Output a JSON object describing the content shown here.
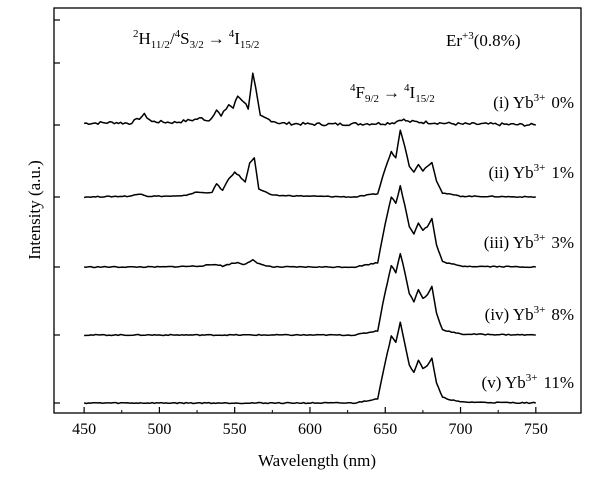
{
  "chart_data": {
    "type": "line",
    "title": "",
    "xlabel": "Wavelength (nm)",
    "ylabel": "Intensity (a.u.)",
    "xlim": [
      430,
      780
    ],
    "x_ticks": [
      450,
      500,
      550,
      600,
      650,
      700,
      750
    ],
    "y_ticks": "unlabeled",
    "legend": "none",
    "annotations": {
      "green_transition": {
        "a": "2",
        "b": "H",
        "c": "11/2",
        "d": "/",
        "e": "4",
        "f": "S",
        "g": "3/2",
        "h": "→",
        "i": "4",
        "j": "I",
        "k": "15/2"
      },
      "red_transition": {
        "a": "4",
        "b": "F",
        "c": "9/2",
        "d": "→",
        "e": "4",
        "f": "I",
        "g": "15/2"
      },
      "dopant": {
        "a": "Er",
        "b": "+3",
        "c": "(0.8%)"
      }
    },
    "series": [
      {
        "label": {
          "roman": "(i) Yb",
          "sup": "3+",
          "pct": "0%"
        },
        "points": [
          [
            450,
            0.02
          ],
          [
            470,
            0.03
          ],
          [
            480,
            0.02
          ],
          [
            485,
            0.06
          ],
          [
            490,
            0.12
          ],
          [
            495,
            0.04
          ],
          [
            510,
            0.03
          ],
          [
            522,
            0.06
          ],
          [
            528,
            0.08
          ],
          [
            533,
            0.05
          ],
          [
            538,
            0.18
          ],
          [
            541,
            0.1
          ],
          [
            546,
            0.24
          ],
          [
            549,
            0.2
          ],
          [
            552,
            0.34
          ],
          [
            556,
            0.28
          ],
          [
            559,
            0.2
          ],
          [
            562,
            0.6
          ],
          [
            564,
            0.42
          ],
          [
            567,
            0.1
          ],
          [
            580,
            0.02
          ],
          [
            600,
            0.01
          ],
          [
            620,
            0.01
          ],
          [
            650,
            0.02
          ],
          [
            656,
            0.03
          ],
          [
            661,
            0.07
          ],
          [
            665,
            0.04
          ],
          [
            680,
            0.03
          ],
          [
            700,
            0.01
          ],
          [
            720,
            0.01
          ],
          [
            750,
            0.0
          ]
        ]
      },
      {
        "label": {
          "roman": "(ii) Yb",
          "sup": "3+",
          "pct": "1%"
        },
        "points": [
          [
            450,
            0.0
          ],
          [
            480,
            0.01
          ],
          [
            488,
            0.04
          ],
          [
            492,
            0.01
          ],
          [
            515,
            0.01
          ],
          [
            525,
            0.06
          ],
          [
            530,
            0.05
          ],
          [
            535,
            0.06
          ],
          [
            538,
            0.16
          ],
          [
            542,
            0.08
          ],
          [
            546,
            0.22
          ],
          [
            550,
            0.3
          ],
          [
            553,
            0.26
          ],
          [
            557,
            0.18
          ],
          [
            560,
            0.42
          ],
          [
            563,
            0.48
          ],
          [
            566,
            0.1
          ],
          [
            575,
            0.02
          ],
          [
            600,
            0.01
          ],
          [
            630,
            0.0
          ],
          [
            645,
            0.04
          ],
          [
            650,
            0.35
          ],
          [
            654,
            0.55
          ],
          [
            657,
            0.48
          ],
          [
            660,
            0.82
          ],
          [
            663,
            0.62
          ],
          [
            666,
            0.38
          ],
          [
            669,
            0.3
          ],
          [
            672,
            0.4
          ],
          [
            675,
            0.32
          ],
          [
            678,
            0.38
          ],
          [
            681,
            0.42
          ],
          [
            684,
            0.2
          ],
          [
            688,
            0.05
          ],
          [
            700,
            0.01
          ],
          [
            750,
            0.0
          ]
        ]
      },
      {
        "label": {
          "roman": "(iii) Yb",
          "sup": "3+",
          "pct": "3%"
        },
        "points": [
          [
            450,
            0.0
          ],
          [
            500,
            0.0
          ],
          [
            525,
            0.01
          ],
          [
            538,
            0.03
          ],
          [
            542,
            0.01
          ],
          [
            548,
            0.04
          ],
          [
            552,
            0.05
          ],
          [
            556,
            0.03
          ],
          [
            562,
            0.08
          ],
          [
            565,
            0.04
          ],
          [
            575,
            0.0
          ],
          [
            630,
            0.0
          ],
          [
            645,
            0.05
          ],
          [
            650,
            0.5
          ],
          [
            654,
            0.8
          ],
          [
            657,
            0.72
          ],
          [
            660,
            0.92
          ],
          [
            663,
            0.7
          ],
          [
            666,
            0.46
          ],
          [
            669,
            0.38
          ],
          [
            672,
            0.5
          ],
          [
            675,
            0.42
          ],
          [
            678,
            0.46
          ],
          [
            681,
            0.55
          ],
          [
            684,
            0.25
          ],
          [
            688,
            0.06
          ],
          [
            700,
            0.01
          ],
          [
            750,
            0.0
          ]
        ]
      },
      {
        "label": {
          "roman": "(iv) Yb",
          "sup": "3+",
          "pct": "8%"
        },
        "points": [
          [
            450,
            0.0
          ],
          [
            560,
            0.0
          ],
          [
            630,
            0.0
          ],
          [
            645,
            0.05
          ],
          [
            650,
            0.5
          ],
          [
            654,
            0.8
          ],
          [
            657,
            0.72
          ],
          [
            660,
            0.94
          ],
          [
            663,
            0.72
          ],
          [
            666,
            0.48
          ],
          [
            669,
            0.38
          ],
          [
            672,
            0.52
          ],
          [
            675,
            0.42
          ],
          [
            678,
            0.46
          ],
          [
            681,
            0.56
          ],
          [
            684,
            0.25
          ],
          [
            688,
            0.06
          ],
          [
            700,
            0.01
          ],
          [
            750,
            0.0
          ]
        ]
      },
      {
        "label": {
          "roman": "(v) Yb",
          "sup": "3+",
          "pct": "11%"
        },
        "points": [
          [
            450,
            0.0
          ],
          [
            560,
            0.0
          ],
          [
            630,
            0.0
          ],
          [
            645,
            0.05
          ],
          [
            650,
            0.45
          ],
          [
            654,
            0.75
          ],
          [
            657,
            0.68
          ],
          [
            660,
            0.9
          ],
          [
            663,
            0.66
          ],
          [
            666,
            0.42
          ],
          [
            669,
            0.34
          ],
          [
            672,
            0.48
          ],
          [
            675,
            0.38
          ],
          [
            678,
            0.42
          ],
          [
            681,
            0.5
          ],
          [
            684,
            0.22
          ],
          [
            688,
            0.06
          ],
          [
            700,
            0.01
          ],
          [
            750,
            0.0
          ]
        ]
      }
    ]
  }
}
